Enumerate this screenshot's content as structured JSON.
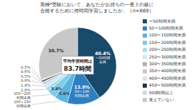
{
  "chart_data": {
    "type": "pie",
    "title": "英検*受験において、あなたがお持ちの一番上の級に\n合格するために何時間学習しましたか。（n=669）",
    "categories": [
      "〜50時間未満",
      "50〜100時間未満",
      "100〜150時間未満",
      "150〜200時間未満",
      "200〜250時間未満",
      "250〜300時間未満",
      "300〜350時間未満",
      "350〜400時間未満",
      "400〜450時間未満",
      "450〜500時間未満",
      "500時間以上",
      "覚えていない"
    ],
    "values": [
      40.4,
      13.9,
      5.6,
      3.8,
      1.6,
      1.8,
      0.6,
      0.5,
      0.0,
      0.6,
      0.5,
      30.7
    ],
    "value_labels": [
      "40.4%",
      "13.9%",
      "5.6%",
      "3.8%",
      "1.6%",
      "1.8%",
      "0.6%",
      "0.5%",
      null,
      "0.6%",
      "0.5%",
      "30.7%"
    ],
    "colors": [
      "#1a4a6b",
      "#2e7fbf",
      "#5ab4e0",
      "#7ecaea",
      "#a8dcf0",
      "#c8ecf8",
      "#b0b0b0",
      "#c8c8c8",
      "#e0e0e0",
      "#1a3050",
      "#d8d8d8",
      "#c8c8c8"
    ],
    "slice_labels": [
      "〜50時間\n未満",
      "50〜100\n時間未満",
      "100〜150\n時間未満",
      "150〜200\n時間未満",
      null,
      null,
      null,
      null,
      null,
      null,
      null,
      null
    ],
    "annotations": [
      "平均学習時間は",
      "83.7時間"
    ],
    "data_labels": true,
    "legend": "right"
  }
}
